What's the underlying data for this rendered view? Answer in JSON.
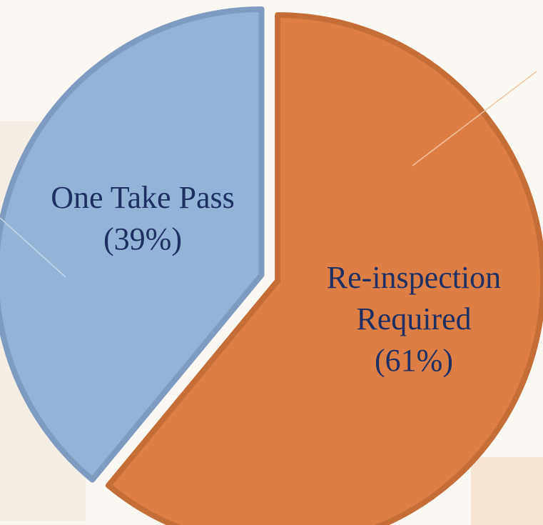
{
  "chart_data": {
    "type": "pie",
    "categories": [
      "One Take Pass",
      "Re-inspection Required"
    ],
    "values": [
      39,
      61
    ],
    "value_labels": [
      "(39%)",
      "(61%)"
    ],
    "colors": [
      "#95b3d7",
      "#dd7f45"
    ],
    "start_angle": -90
  }
}
